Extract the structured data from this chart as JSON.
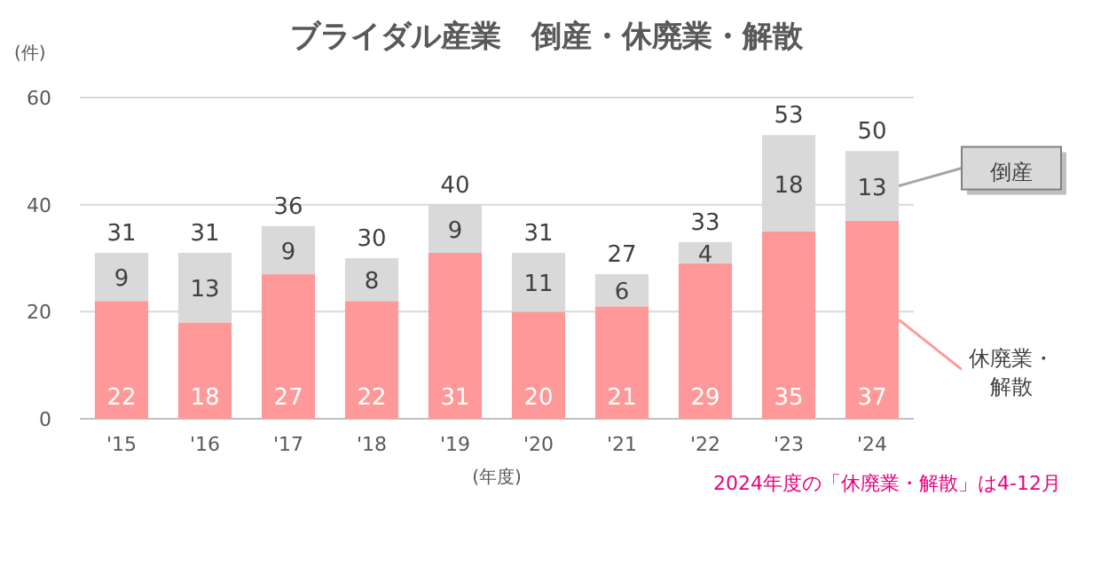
{
  "chart_data": {
    "type": "bar",
    "title": "ブライダル産業　倒産・休廃業・解散",
    "ylabel": "(件)",
    "xlabel": "(年度)",
    "categories": [
      "'15",
      "'16",
      "'17",
      "'18",
      "'19",
      "'20",
      "'21",
      "'22",
      "'23",
      "'24"
    ],
    "stacked": true,
    "series": [
      {
        "name": "休廃業・解散",
        "color": "#ff9999",
        "values": [
          22,
          18,
          27,
          22,
          31,
          20,
          21,
          29,
          35,
          37
        ]
      },
      {
        "name": "倒産",
        "color": "#d9d9d9",
        "values": [
          9,
          13,
          9,
          8,
          9,
          11,
          6,
          4,
          18,
          13
        ]
      }
    ],
    "totals": [
      "31",
      "31",
      "36",
      "30",
      "40",
      "31",
      "27",
      "33",
      "53",
      "50"
    ],
    "data_labels": true,
    "ylim": [
      0,
      60
    ],
    "yticks": [
      0,
      20,
      40,
      60
    ],
    "grid": "y",
    "legend": "right",
    "annotations": [
      "2024年度の「休廃業・解散」は4-12月"
    ]
  }
}
